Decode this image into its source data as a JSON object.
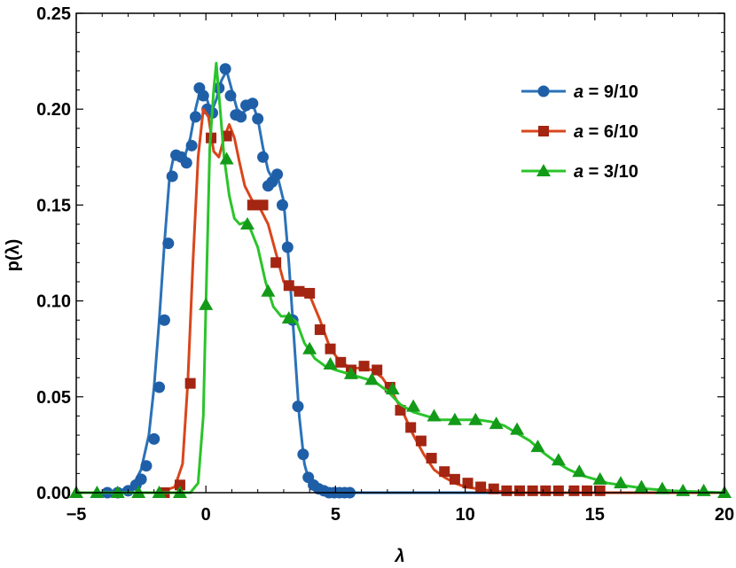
{
  "chart_data": {
    "type": "line",
    "xlabel": "λ",
    "ylabel": "p(λ)",
    "xlim": [
      -5,
      20
    ],
    "ylim": [
      0,
      0.25
    ],
    "x_ticks": [
      "−5",
      "0",
      "5",
      "10",
      "15",
      "20"
    ],
    "x_tick_values": [
      -5,
      0,
      5,
      10,
      15,
      20
    ],
    "y_ticks": [
      "0.00",
      "0.05",
      "0.10",
      "0.15",
      "0.20",
      "0.25"
    ],
    "y_tick_values": [
      0,
      0.05,
      0.1,
      0.15,
      0.2,
      0.25
    ],
    "grid": false,
    "legend_position": "top-right",
    "series": [
      {
        "name": "a = 9/10",
        "legend_var": "a",
        "legend_value": " = 9/10",
        "color": "#1f5fa8",
        "line_color": "#2b72b8",
        "marker": "circle",
        "curve": [
          [
            -4,
            0
          ],
          [
            -3.3,
            0.001
          ],
          [
            -2.8,
            0.004
          ],
          [
            -2.5,
            0.012
          ],
          [
            -2.2,
            0.03
          ],
          [
            -2.0,
            0.055
          ],
          [
            -1.8,
            0.09
          ],
          [
            -1.6,
            0.13
          ],
          [
            -1.4,
            0.165
          ],
          [
            -1.2,
            0.178
          ],
          [
            -1.0,
            0.174
          ],
          [
            -0.8,
            0.176
          ],
          [
            -0.6,
            0.185
          ],
          [
            -0.4,
            0.2
          ],
          [
            -0.2,
            0.211
          ],
          [
            0.0,
            0.207
          ],
          [
            0.2,
            0.198
          ],
          [
            0.4,
            0.205
          ],
          [
            0.6,
            0.215
          ],
          [
            0.8,
            0.22
          ],
          [
            1.0,
            0.21
          ],
          [
            1.2,
            0.2
          ],
          [
            1.4,
            0.198
          ],
          [
            1.6,
            0.2
          ],
          [
            1.8,
            0.203
          ],
          [
            2.0,
            0.195
          ],
          [
            2.2,
            0.18
          ],
          [
            2.4,
            0.168
          ],
          [
            2.6,
            0.163
          ],
          [
            2.8,
            0.163
          ],
          [
            3.0,
            0.152
          ],
          [
            3.2,
            0.12
          ],
          [
            3.4,
            0.08
          ],
          [
            3.6,
            0.04
          ],
          [
            3.8,
            0.015
          ],
          [
            4.0,
            0.005
          ],
          [
            4.5,
            0.001
          ],
          [
            5.5,
            0
          ],
          [
            20,
            0
          ]
        ],
        "markers": [
          [
            -3.8,
            0.0
          ],
          [
            -3.4,
            0.0
          ],
          [
            -3.0,
            0.001
          ],
          [
            -2.7,
            0.004
          ],
          [
            -2.5,
            0.007
          ],
          [
            -2.3,
            0.014
          ],
          [
            -2.0,
            0.028
          ],
          [
            -1.8,
            0.055
          ],
          [
            -1.6,
            0.09
          ],
          [
            -1.45,
            0.13
          ],
          [
            -1.3,
            0.165
          ],
          [
            -1.15,
            0.176
          ],
          [
            -0.95,
            0.175
          ],
          [
            -0.75,
            0.172
          ],
          [
            -0.55,
            0.181
          ],
          [
            -0.4,
            0.196
          ],
          [
            -0.25,
            0.211
          ],
          [
            -0.1,
            0.207
          ],
          [
            0.05,
            0.2
          ],
          [
            0.25,
            0.198
          ],
          [
            0.5,
            0.211
          ],
          [
            0.75,
            0.221
          ],
          [
            0.95,
            0.207
          ],
          [
            1.15,
            0.197
          ],
          [
            1.35,
            0.196
          ],
          [
            1.55,
            0.202
          ],
          [
            1.8,
            0.203
          ],
          [
            2.0,
            0.195
          ],
          [
            2.2,
            0.175
          ],
          [
            2.4,
            0.16
          ],
          [
            2.55,
            0.162
          ],
          [
            2.75,
            0.166
          ],
          [
            2.95,
            0.15
          ],
          [
            3.15,
            0.128
          ],
          [
            3.35,
            0.09
          ],
          [
            3.55,
            0.045
          ],
          [
            3.75,
            0.02
          ],
          [
            3.95,
            0.008
          ],
          [
            4.15,
            0.004
          ],
          [
            4.35,
            0.002
          ],
          [
            4.55,
            0.001
          ],
          [
            4.75,
            0.0
          ],
          [
            4.95,
            0.0
          ],
          [
            5.15,
            0.0
          ],
          [
            5.35,
            0.0
          ],
          [
            5.55,
            0.0
          ]
        ]
      },
      {
        "name": "a = 6/10",
        "legend_var": "a",
        "legend_value": " = 6/10",
        "color": "#a32512",
        "line_color": "#d9461b",
        "marker": "square",
        "curve": [
          [
            -5,
            0
          ],
          [
            -1.8,
            0
          ],
          [
            -1.2,
            0.003
          ],
          [
            -0.9,
            0.015
          ],
          [
            -0.7,
            0.057
          ],
          [
            -0.5,
            0.12
          ],
          [
            -0.3,
            0.175
          ],
          [
            -0.1,
            0.2
          ],
          [
            0.1,
            0.196
          ],
          [
            0.3,
            0.178
          ],
          [
            0.5,
            0.175
          ],
          [
            0.7,
            0.185
          ],
          [
            0.9,
            0.192
          ],
          [
            1.1,
            0.185
          ],
          [
            1.3,
            0.172
          ],
          [
            1.5,
            0.16
          ],
          [
            1.8,
            0.152
          ],
          [
            2.1,
            0.148
          ],
          [
            2.4,
            0.14
          ],
          [
            2.7,
            0.125
          ],
          [
            3.0,
            0.11
          ],
          [
            3.3,
            0.106
          ],
          [
            3.6,
            0.105
          ],
          [
            4.0,
            0.103
          ],
          [
            4.4,
            0.09
          ],
          [
            4.8,
            0.075
          ],
          [
            5.2,
            0.068
          ],
          [
            5.6,
            0.065
          ],
          [
            6.0,
            0.065
          ],
          [
            6.4,
            0.064
          ],
          [
            6.8,
            0.06
          ],
          [
            7.2,
            0.052
          ],
          [
            7.6,
            0.042
          ],
          [
            8.0,
            0.03
          ],
          [
            8.4,
            0.02
          ],
          [
            8.8,
            0.012
          ],
          [
            9.2,
            0.008
          ],
          [
            9.6,
            0.005
          ],
          [
            10.0,
            0.003
          ],
          [
            11,
            0.001
          ],
          [
            12,
            0.0
          ],
          [
            20,
            0
          ]
        ],
        "markers": [
          [
            -1.6,
            0.0
          ],
          [
            -1.0,
            0.004
          ],
          [
            -0.6,
            0.057
          ],
          [
            0.2,
            0.185
          ],
          [
            0.8,
            0.186
          ],
          [
            1.8,
            0.15
          ],
          [
            2.2,
            0.15
          ],
          [
            2.7,
            0.12
          ],
          [
            3.2,
            0.108
          ],
          [
            3.6,
            0.105
          ],
          [
            4.0,
            0.104
          ],
          [
            4.4,
            0.085
          ],
          [
            4.8,
            0.075
          ],
          [
            5.2,
            0.068
          ],
          [
            5.6,
            0.064
          ],
          [
            6.1,
            0.066
          ],
          [
            6.6,
            0.064
          ],
          [
            7.1,
            0.055
          ],
          [
            7.5,
            0.043
          ],
          [
            7.9,
            0.034
          ],
          [
            8.3,
            0.027
          ],
          [
            8.7,
            0.018
          ],
          [
            9.2,
            0.011
          ],
          [
            9.6,
            0.007
          ],
          [
            10.1,
            0.005
          ],
          [
            10.6,
            0.003
          ],
          [
            11.1,
            0.002
          ],
          [
            11.6,
            0.001
          ],
          [
            12.1,
            0.001
          ],
          [
            12.6,
            0.001
          ],
          [
            13.1,
            0.001
          ],
          [
            13.6,
            0.001
          ],
          [
            14.2,
            0.001
          ],
          [
            14.7,
            0.001
          ],
          [
            15.2,
            0.001
          ]
        ]
      },
      {
        "name": "a = 3/10",
        "legend_var": "a",
        "legend_value": " = 3/10",
        "color": "#139a19",
        "line_color": "#2bc42b",
        "marker": "triangle",
        "curve": [
          [
            -5,
            0
          ],
          [
            -0.6,
            0
          ],
          [
            -0.3,
            0.005
          ],
          [
            -0.1,
            0.04
          ],
          [
            0.0,
            0.098
          ],
          [
            0.15,
            0.18
          ],
          [
            0.3,
            0.21
          ],
          [
            0.4,
            0.224
          ],
          [
            0.55,
            0.2
          ],
          [
            0.7,
            0.175
          ],
          [
            0.9,
            0.155
          ],
          [
            1.1,
            0.143
          ],
          [
            1.3,
            0.14
          ],
          [
            1.5,
            0.141
          ],
          [
            1.7,
            0.138
          ],
          [
            2.0,
            0.128
          ],
          [
            2.3,
            0.11
          ],
          [
            2.6,
            0.097
          ],
          [
            2.9,
            0.092
          ],
          [
            3.2,
            0.092
          ],
          [
            3.5,
            0.089
          ],
          [
            3.8,
            0.078
          ],
          [
            4.2,
            0.07
          ],
          [
            4.6,
            0.066
          ],
          [
            5.0,
            0.064
          ],
          [
            5.5,
            0.062
          ],
          [
            6.0,
            0.06
          ],
          [
            6.5,
            0.058
          ],
          [
            7.0,
            0.053
          ],
          [
            7.5,
            0.046
          ],
          [
            8.0,
            0.042
          ],
          [
            8.5,
            0.04
          ],
          [
            9.0,
            0.038
          ],
          [
            9.5,
            0.038
          ],
          [
            10.0,
            0.038
          ],
          [
            10.5,
            0.038
          ],
          [
            11.0,
            0.037
          ],
          [
            11.5,
            0.035
          ],
          [
            12.0,
            0.031
          ],
          [
            12.5,
            0.027
          ],
          [
            13.0,
            0.021
          ],
          [
            13.5,
            0.016
          ],
          [
            14.0,
            0.012
          ],
          [
            14.5,
            0.009
          ],
          [
            15.0,
            0.007
          ],
          [
            15.5,
            0.005
          ],
          [
            16.0,
            0.004
          ],
          [
            17,
            0.002
          ],
          [
            18,
            0.001
          ],
          [
            20,
            0
          ]
        ],
        "markers": [
          [
            -5.0,
            0.0
          ],
          [
            -4.2,
            0.0
          ],
          [
            -3.4,
            0.0
          ],
          [
            -2.6,
            0.0
          ],
          [
            -1.8,
            0.0
          ],
          [
            -1.0,
            0.0
          ],
          [
            0.0,
            0.098
          ],
          [
            0.8,
            0.174
          ],
          [
            1.6,
            0.14
          ],
          [
            2.4,
            0.105
          ],
          [
            3.2,
            0.091
          ],
          [
            4.0,
            0.075
          ],
          [
            4.8,
            0.067
          ],
          [
            5.6,
            0.062
          ],
          [
            6.4,
            0.059
          ],
          [
            7.2,
            0.054
          ],
          [
            8.0,
            0.045
          ],
          [
            8.8,
            0.04
          ],
          [
            9.6,
            0.038
          ],
          [
            10.4,
            0.038
          ],
          [
            11.2,
            0.036
          ],
          [
            12.0,
            0.033
          ],
          [
            12.8,
            0.024
          ],
          [
            13.6,
            0.017
          ],
          [
            14.4,
            0.011
          ],
          [
            15.2,
            0.007
          ],
          [
            16.0,
            0.005
          ],
          [
            16.8,
            0.003
          ],
          [
            17.6,
            0.002
          ],
          [
            18.4,
            0.001
          ],
          [
            19.2,
            0.001
          ],
          [
            20.0,
            0.0
          ]
        ]
      }
    ]
  }
}
